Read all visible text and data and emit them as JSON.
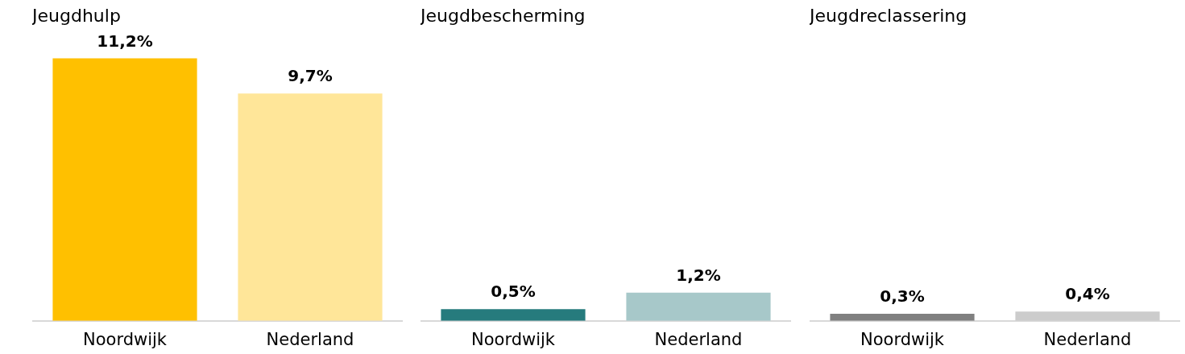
{
  "chart_data": [
    {
      "type": "bar",
      "title": "Jeugdhulp",
      "categories": [
        "Noordwijk",
        "Nederland"
      ],
      "values": [
        11.2,
        9.7
      ],
      "colors": [
        "#ffc000",
        "#ffe699"
      ],
      "value_labels": [
        "11,2%",
        "9,7%"
      ],
      "tick_labels": "x"
    },
    {
      "type": "bar",
      "title": "Jeugdbescherming",
      "categories": [
        "Noordwijk",
        "Nederland"
      ],
      "values": [
        0.5,
        1.2
      ],
      "colors": [
        "#267b7d",
        "#a7c8c9"
      ],
      "value_labels": [
        "0,5%",
        "1,2%"
      ],
      "tick_labels": "x"
    },
    {
      "type": "bar",
      "title": "Jeugdreclassering",
      "categories": [
        "Noordwijk",
        "Nederland"
      ],
      "values": [
        0.3,
        0.4
      ],
      "colors": [
        "#808080",
        "#cccccc"
      ],
      "value_labels": [
        "0,3%",
        "0,4%"
      ],
      "tick_labels": "x"
    }
  ]
}
